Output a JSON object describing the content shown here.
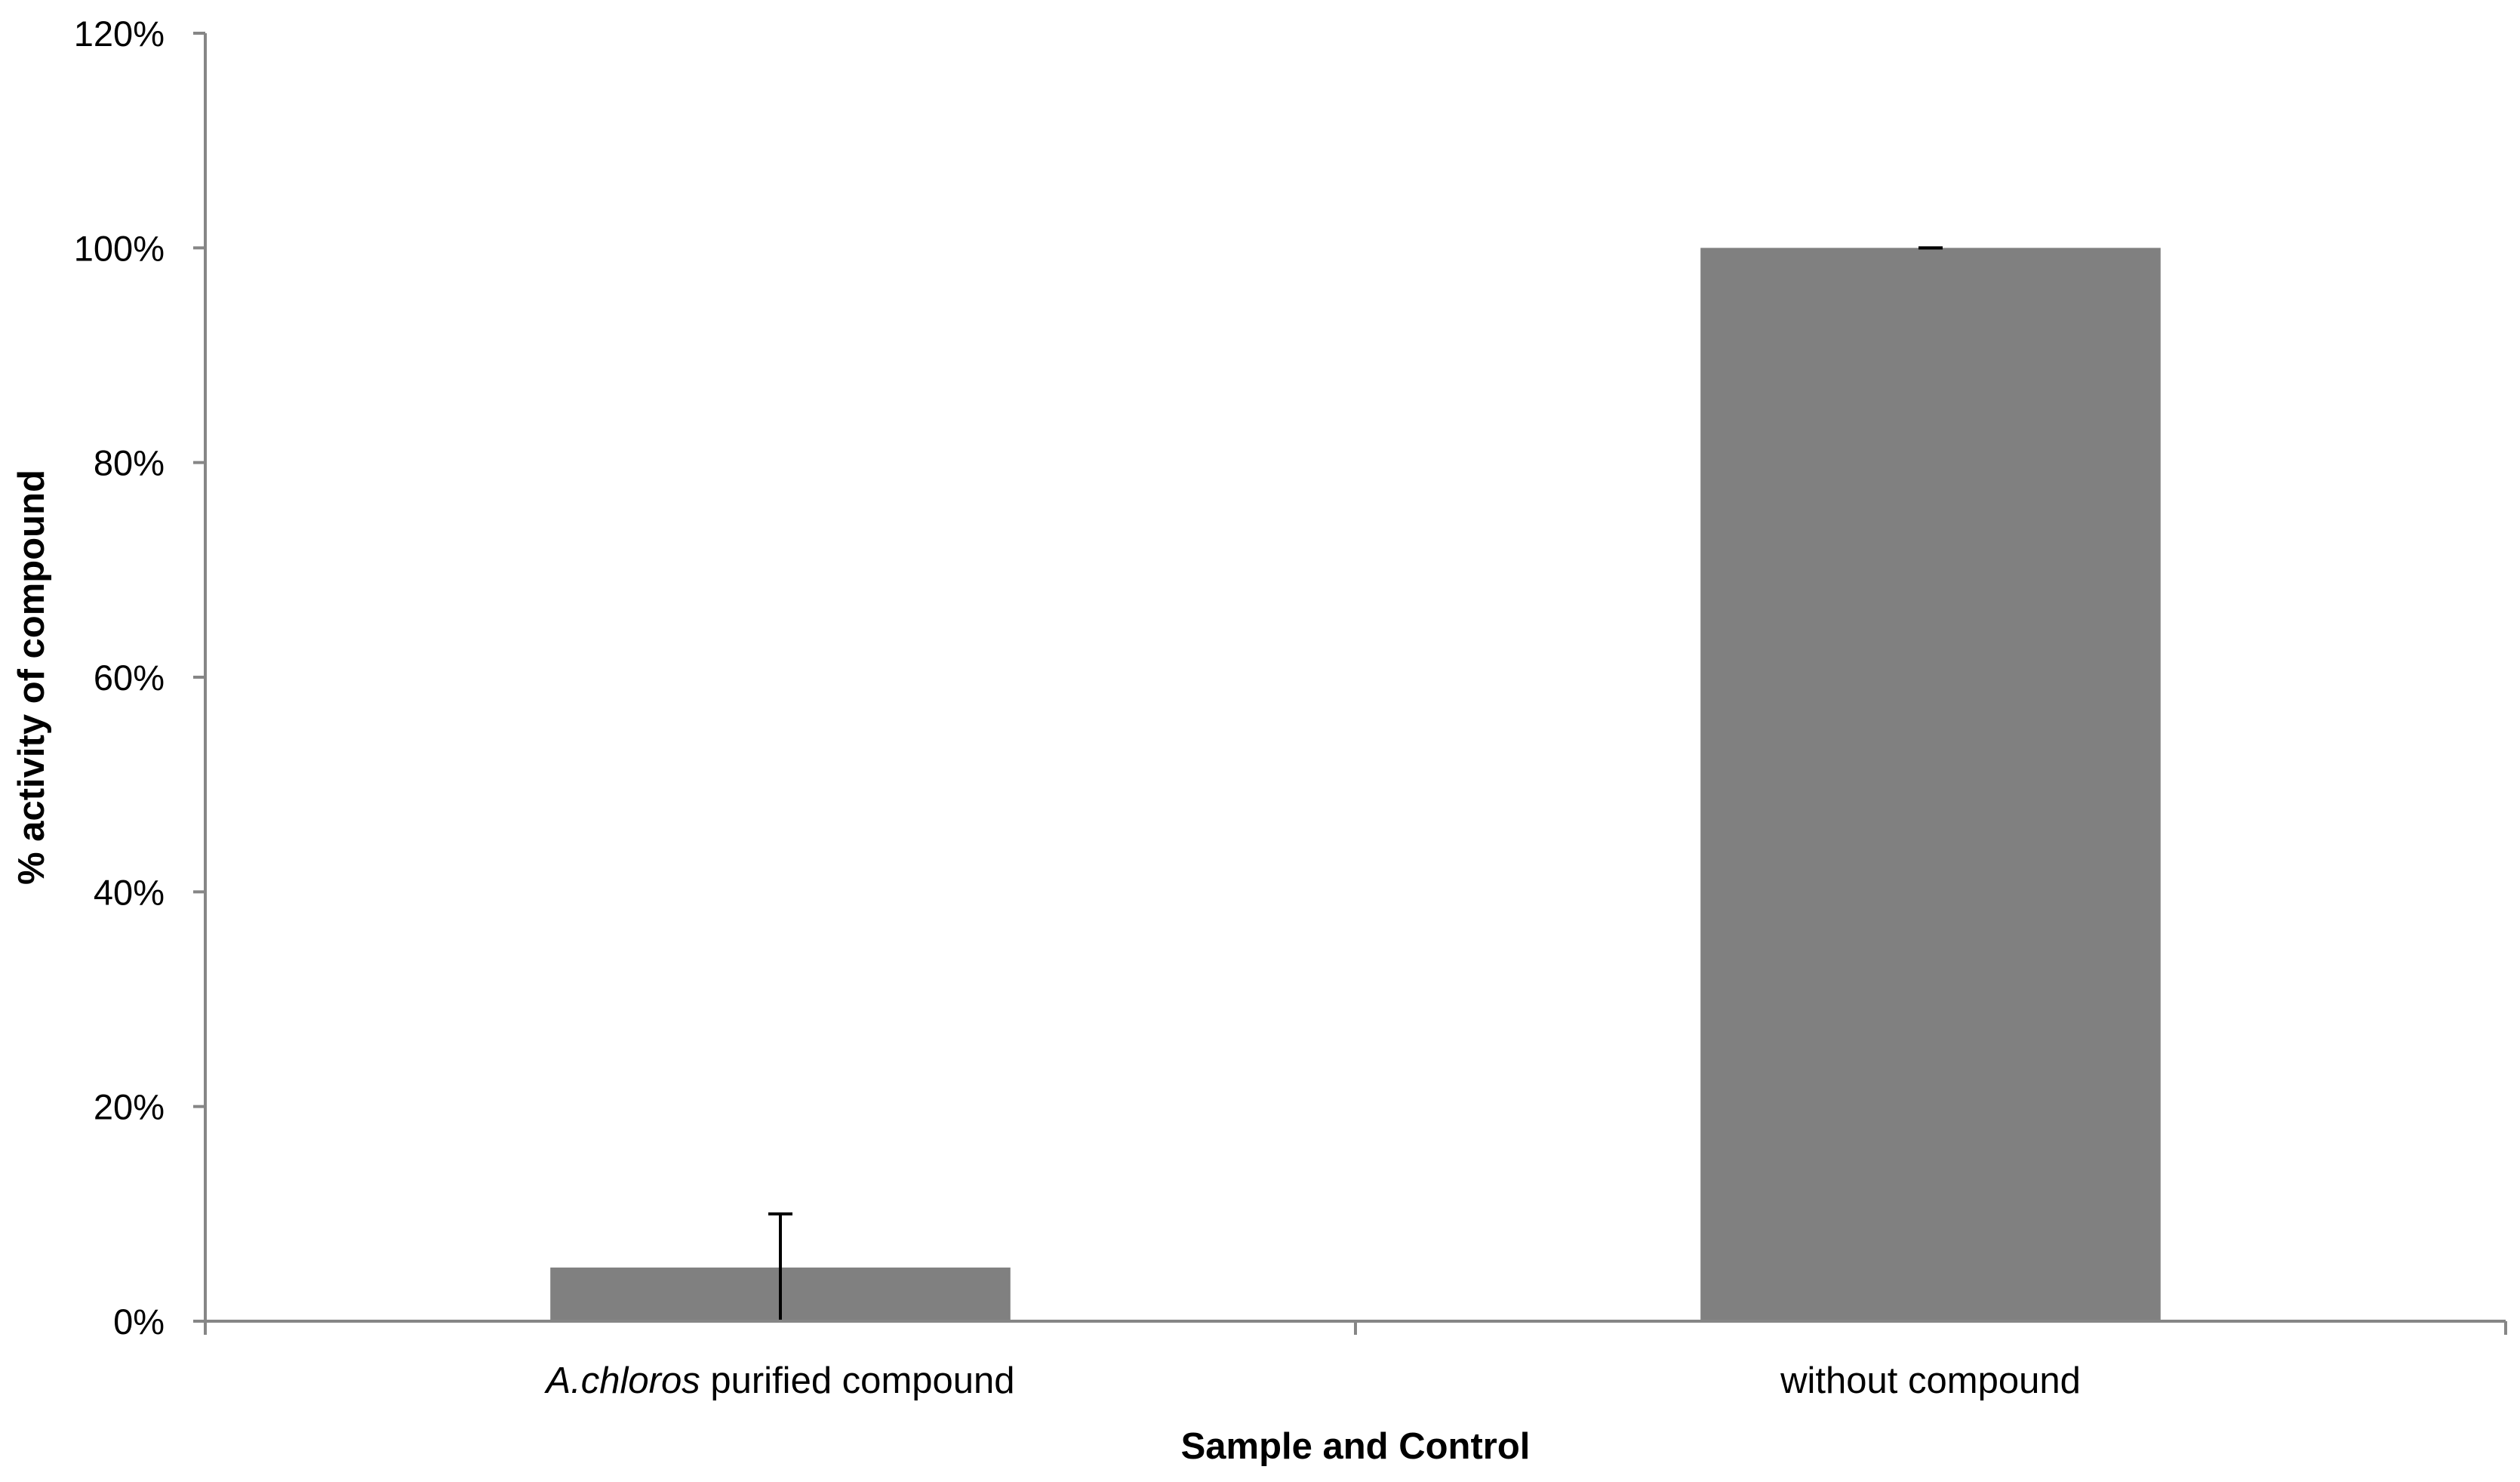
{
  "chart_data": {
    "type": "bar",
    "title": "",
    "xlabel": "Sample and Control",
    "ylabel": "% activity of compound",
    "categories": [
      {
        "italic": "A.chloros",
        "rest": " purified compound"
      },
      {
        "italic": "",
        "rest": "without compound"
      }
    ],
    "values": [
      5,
      100
    ],
    "errors": [
      5,
      0
    ],
    "ylim": [
      0,
      120
    ],
    "yticks": [
      "0%",
      "20%",
      "40%",
      "60%",
      "80%",
      "100%",
      "120%"
    ],
    "grid": false,
    "legend": "none",
    "bar_color": "#808080",
    "axis_color": "#868686",
    "error_color": "#000000"
  }
}
